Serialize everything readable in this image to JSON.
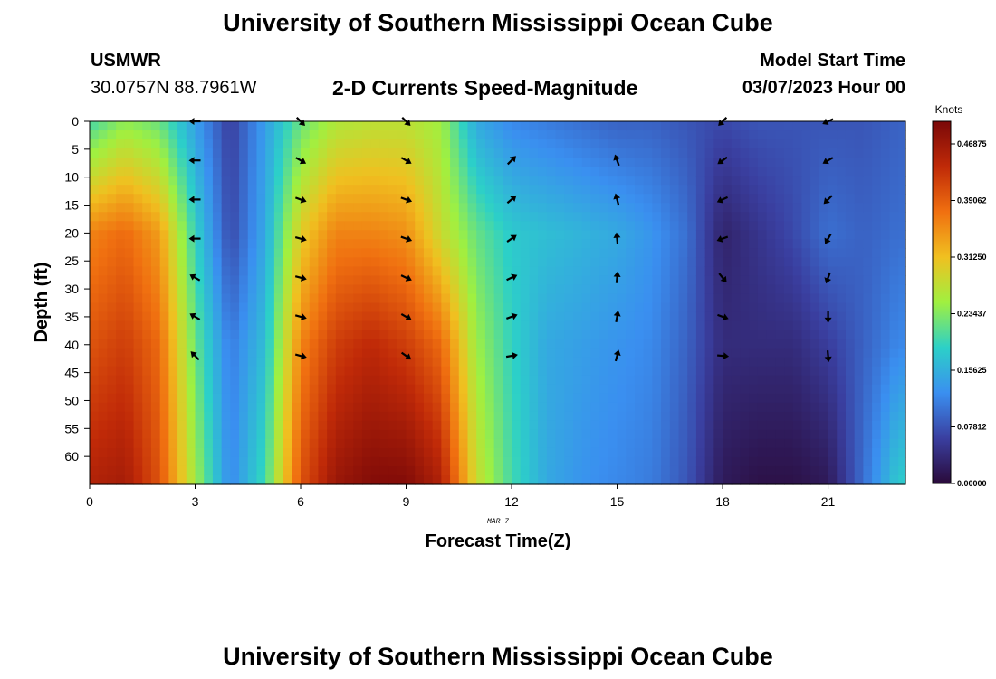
{
  "header": {
    "title": "University of Southern Mississippi Ocean Cube",
    "station": "USMWR",
    "coords": "30.0757N  88.7961W",
    "subtitle": "2-D Currents Speed-Magnitude",
    "model_label": "Model Start Time",
    "model_time": "03/07/2023 Hour 00"
  },
  "footer": {
    "title": "University of Southern Mississippi Ocean Cube"
  },
  "chart_data": {
    "type": "heatmap",
    "title": "2-D Currents Speed-Magnitude",
    "xlabel": "Forecast Time(Z)",
    "ylabel": "Depth (ft)",
    "x_date_label": "MAR 7",
    "xlim": [
      0,
      23.2
    ],
    "ylim": [
      65,
      0
    ],
    "x_ticks": [
      "0",
      "3",
      "6",
      "9",
      "12",
      "15",
      "18",
      "21"
    ],
    "y_ticks": [
      "0",
      "5",
      "10",
      "15",
      "20",
      "25",
      "30",
      "35",
      "40",
      "45",
      "50",
      "55",
      "60"
    ],
    "colorbar": {
      "unit_label": "Knots",
      "min": 0,
      "max": 0.5,
      "ticks": [
        "0.00000",
        "0.07812",
        "0.15625",
        "0.23437",
        "0.31250",
        "0.39062",
        "0.46875"
      ],
      "colors": [
        "#2a0a3a",
        "#3a3fa0",
        "#3a8ff0",
        "#2cd0c8",
        "#a0f040",
        "#f0c020",
        "#f07010",
        "#c02a08",
        "#7a0808"
      ]
    },
    "time_hours": [
      0,
      1,
      2,
      3,
      4,
      5,
      6,
      7,
      8,
      9,
      10,
      11,
      12,
      13,
      14,
      15,
      16,
      17,
      18,
      19,
      20,
      21,
      22,
      23
    ],
    "speed_depth_profile_knots": {
      "depths_ft": [
        0,
        20,
        40,
        64
      ],
      "rows": [
        [
          0.2,
          0.24,
          0.22,
          0.14,
          0.06,
          0.14,
          0.22,
          0.26,
          0.27,
          0.27,
          0.25,
          0.15,
          0.12,
          0.11,
          0.1,
          0.09,
          0.09,
          0.08,
          0.07,
          0.08,
          0.08,
          0.08,
          0.08,
          0.09
        ],
        [
          0.36,
          0.38,
          0.34,
          0.19,
          0.07,
          0.15,
          0.3,
          0.36,
          0.36,
          0.35,
          0.28,
          0.22,
          0.18,
          0.17,
          0.16,
          0.15,
          0.13,
          0.1,
          0.03,
          0.05,
          0.07,
          0.1,
          0.09,
          0.1
        ],
        [
          0.4,
          0.42,
          0.38,
          0.22,
          0.11,
          0.17,
          0.36,
          0.42,
          0.44,
          0.42,
          0.38,
          0.25,
          0.19,
          0.15,
          0.14,
          0.13,
          0.12,
          0.09,
          0.04,
          0.04,
          0.04,
          0.06,
          0.09,
          0.12
        ],
        [
          0.45,
          0.46,
          0.4,
          0.25,
          0.12,
          0.2,
          0.4,
          0.47,
          0.49,
          0.49,
          0.45,
          0.28,
          0.2,
          0.15,
          0.13,
          0.12,
          0.11,
          0.08,
          0.02,
          0.01,
          0.01,
          0.02,
          0.1,
          0.18
        ]
      ]
    },
    "vector_times": [
      3,
      6,
      9,
      12,
      15,
      18,
      21
    ],
    "vector_depths_ft": [
      0,
      7,
      14,
      21,
      28,
      35,
      42
    ],
    "vector_directions_deg": [
      [
        270,
        270,
        270,
        270,
        300,
        300,
        315
      ],
      [
        135,
        120,
        110,
        105,
        105,
        105,
        105
      ],
      [
        135,
        120,
        110,
        110,
        115,
        120,
        125
      ],
      [
        null,
        45,
        50,
        55,
        65,
        70,
        80
      ],
      [
        null,
        340,
        345,
        355,
        5,
        10,
        15
      ],
      [
        225,
        235,
        245,
        250,
        140,
        110,
        95
      ],
      [
        245,
        240,
        225,
        210,
        200,
        180,
        175
      ]
    ]
  }
}
